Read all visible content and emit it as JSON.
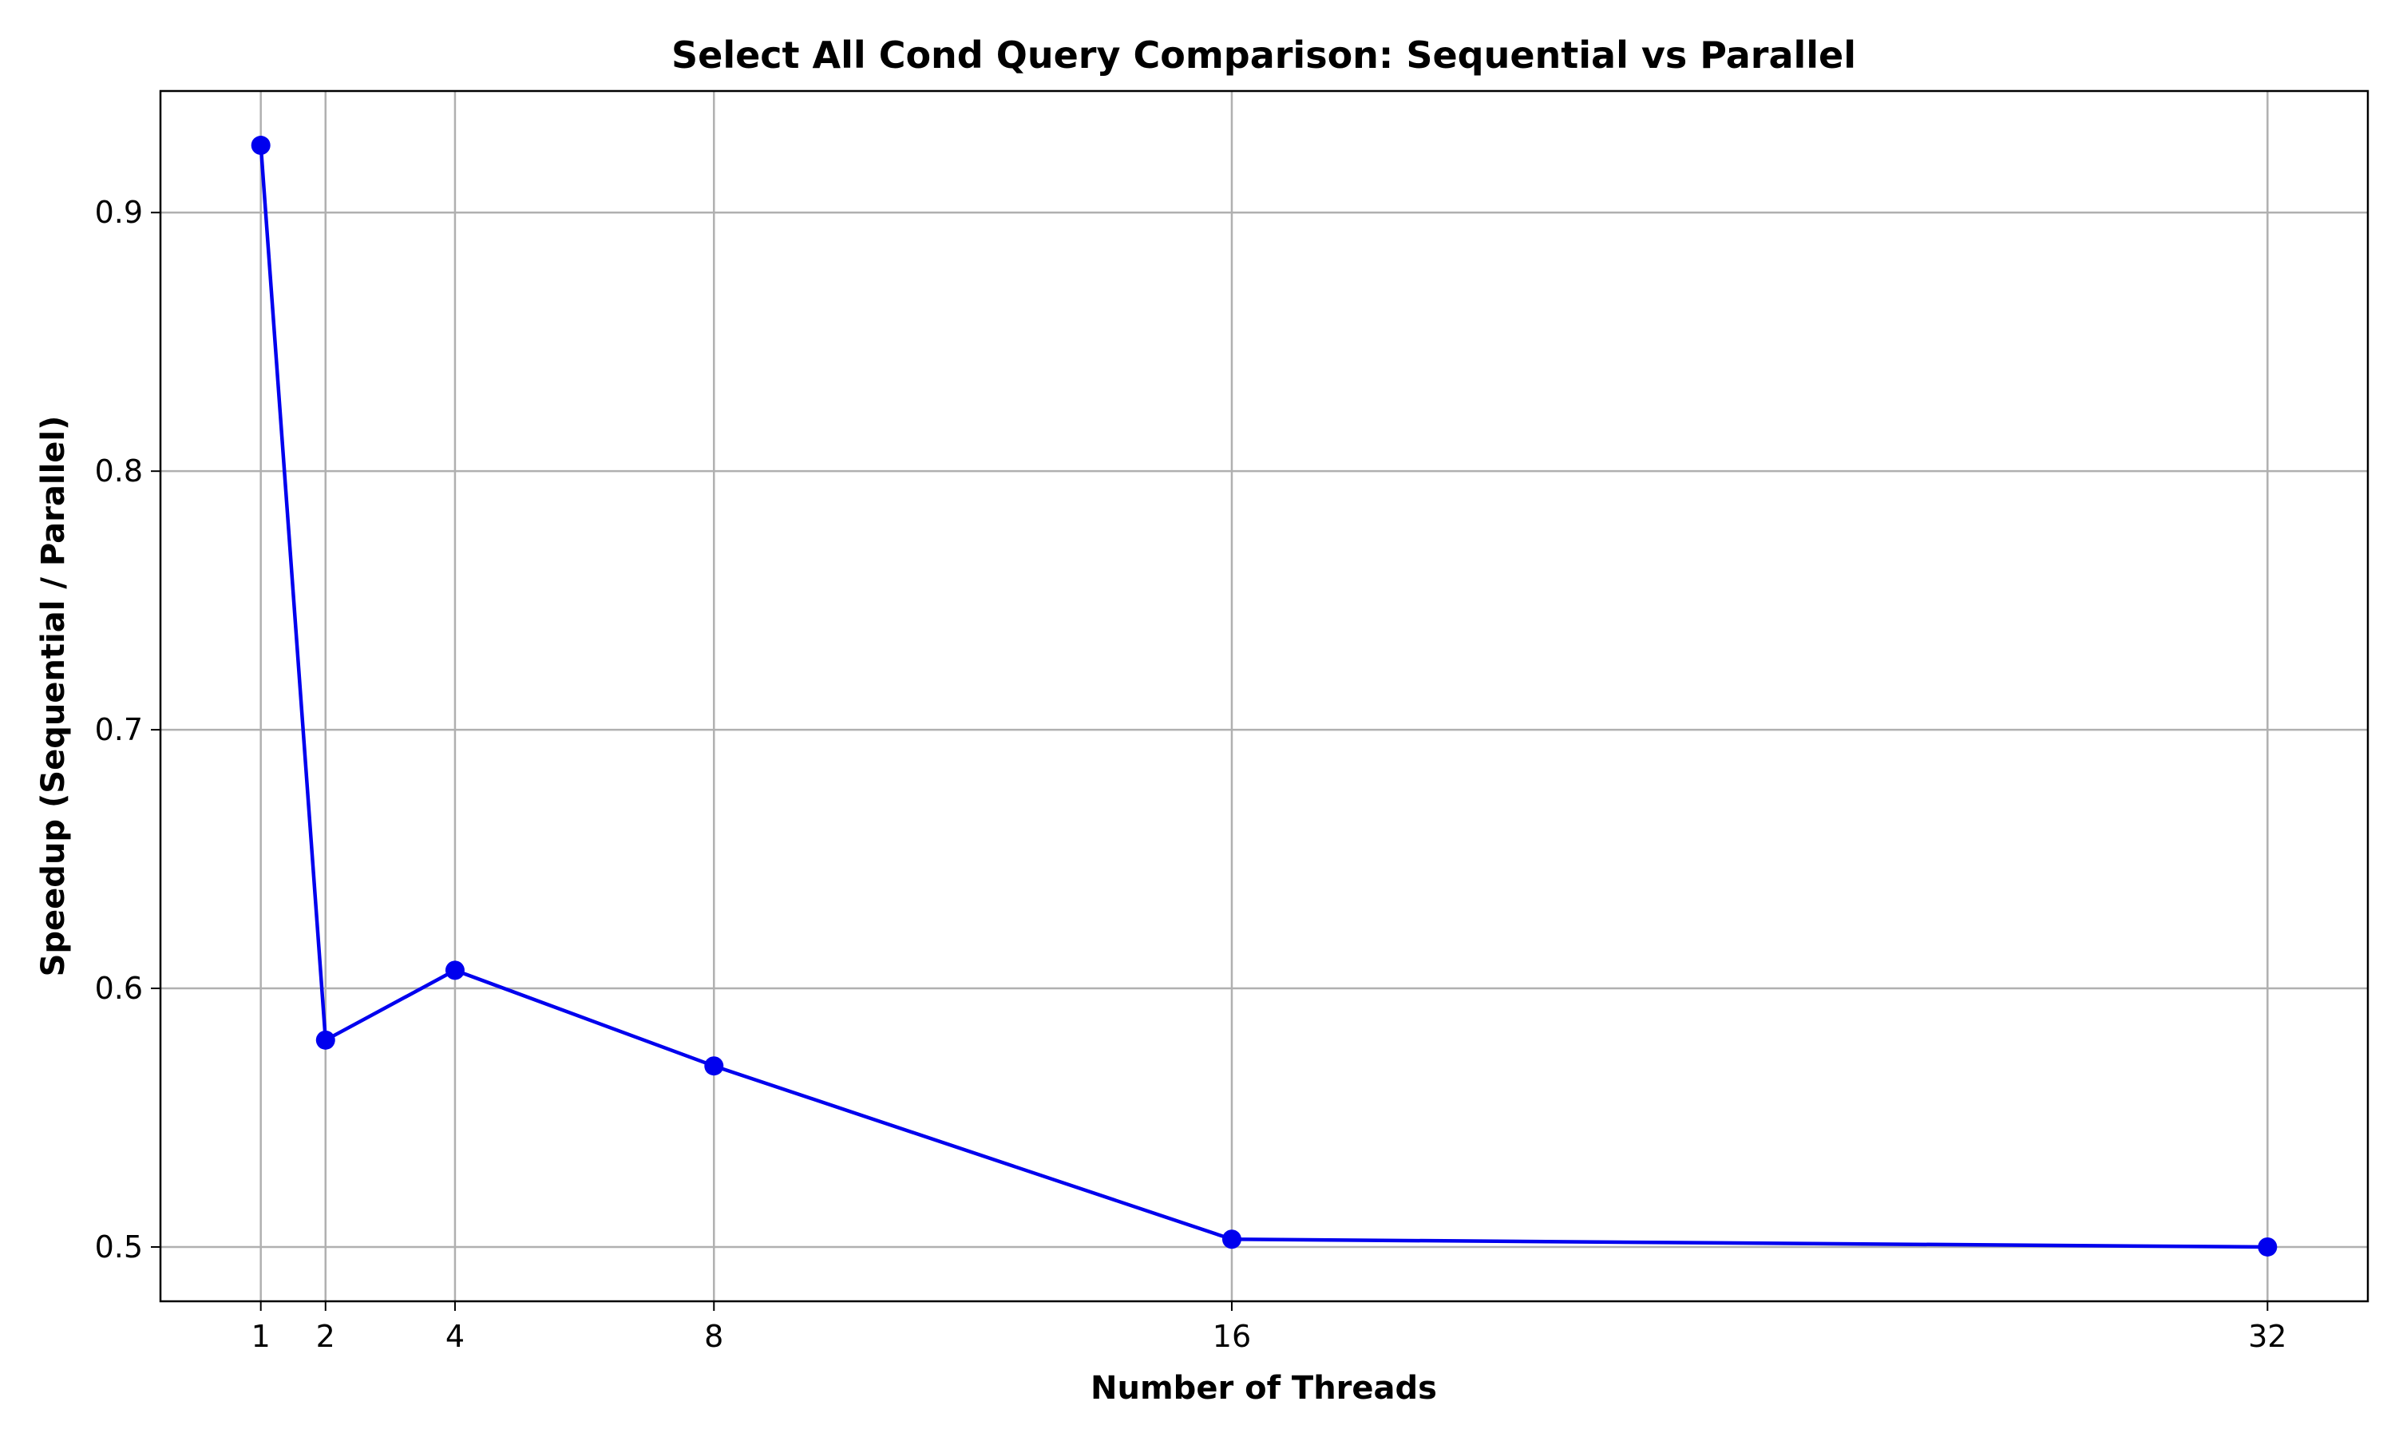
{
  "chart_data": {
    "type": "line",
    "title": "Select All Cond Query Comparison: Sequential vs Parallel",
    "xlabel": "Number of Threads",
    "ylabel": "Speedup (Sequential / Parallel)",
    "x": [
      1,
      2,
      4,
      8,
      16,
      32
    ],
    "x_tick_labels": [
      "1",
      "2",
      "4",
      "8",
      "16",
      "32"
    ],
    "y_ticks": [
      0.5,
      0.6,
      0.7,
      0.8,
      0.9
    ],
    "y_tick_labels": [
      "0.5",
      "0.6",
      "0.7",
      "0.8",
      "0.9"
    ],
    "xlim": [
      -0.55,
      33.55
    ],
    "ylim": [
      0.479,
      0.947
    ],
    "grid": true,
    "series": [
      {
        "values": [
          0.926,
          0.58,
          0.607,
          0.57,
          0.503,
          0.5
        ],
        "color": "#0000ee",
        "marker": "circle"
      }
    ]
  }
}
